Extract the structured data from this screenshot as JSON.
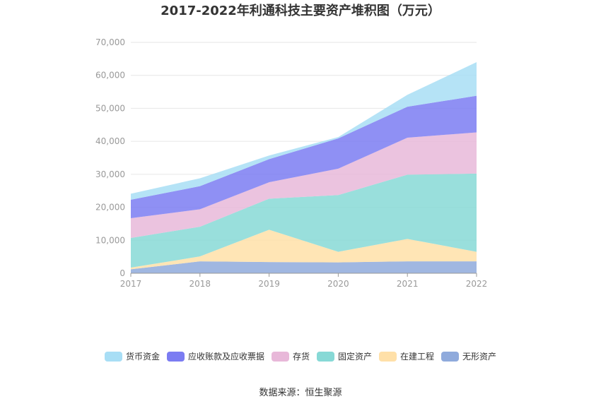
{
  "chart_data": {
    "type": "area",
    "stacked": true,
    "title": "2017-2022年利通科技主要资产堆积图（万元）",
    "source": "数据来源：恒生聚源",
    "x": [
      "2017",
      "2018",
      "2019",
      "2020",
      "2021",
      "2022"
    ],
    "ylim": [
      0,
      70000
    ],
    "yticks": [
      0,
      10000,
      20000,
      30000,
      40000,
      50000,
      60000,
      70000
    ],
    "ytick_labels": [
      "0",
      "10,000",
      "20,000",
      "30,000",
      "40,000",
      "50,000",
      "60,000",
      "70,000"
    ],
    "grid": true,
    "legend_position": "bottom",
    "series": [
      {
        "name": "无形资产",
        "color": "#8faadc",
        "values": [
          1200,
          3600,
          3400,
          3300,
          3600,
          3600
        ]
      },
      {
        "name": "在建工程",
        "color": "#ffe0a8",
        "values": [
          500,
          1500,
          9800,
          3200,
          6800,
          2900
        ]
      },
      {
        "name": "固定资产",
        "color": "#87d9d6",
        "values": [
          9000,
          9000,
          9400,
          17200,
          19500,
          23700
        ]
      },
      {
        "name": "存货",
        "color": "#e8b8d9",
        "values": [
          6000,
          5300,
          5000,
          8000,
          11200,
          12500
        ]
      },
      {
        "name": "应收账款及应收票据",
        "color": "#7b7cf2",
        "values": [
          5600,
          7000,
          7000,
          9200,
          9400,
          11100
        ]
      },
      {
        "name": "货币资金",
        "color": "#a8def5",
        "values": [
          1800,
          2400,
          1100,
          400,
          3600,
          10200
        ]
      }
    ],
    "legend_order": [
      "货币资金",
      "应收账款及应收票据",
      "存货",
      "固定资产",
      "在建工程",
      "无形资产"
    ]
  }
}
